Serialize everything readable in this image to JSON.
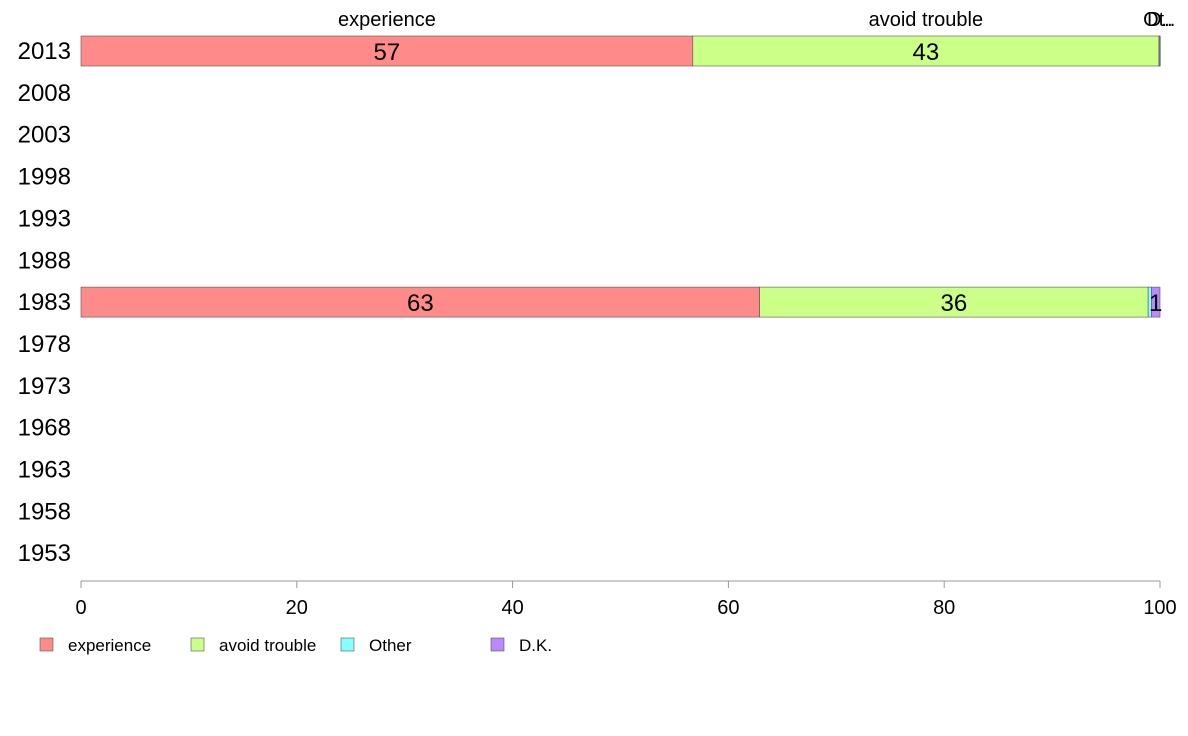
{
  "chart_data": {
    "type": "bar",
    "orientation": "horizontal",
    "stacked": true,
    "categories": [
      "2013",
      "2008",
      "2003",
      "1998",
      "1993",
      "1988",
      "1983",
      "1978",
      "1973",
      "1968",
      "1963",
      "1958",
      "1953"
    ],
    "series": [
      {
        "name": "experience",
        "color": "#FF8A8A",
        "values": [
          56.7,
          null,
          null,
          null,
          null,
          null,
          62.9,
          null,
          null,
          null,
          null,
          null,
          null
        ]
      },
      {
        "name": "avoid trouble",
        "color": "#CCFF88",
        "values": [
          43.2,
          null,
          null,
          null,
          null,
          null,
          36.0,
          null,
          null,
          null,
          null,
          null,
          null
        ]
      },
      {
        "name": "Other",
        "color": "#88FFFF",
        "values": [
          0.05,
          null,
          null,
          null,
          null,
          null,
          0.3,
          null,
          null,
          null,
          null,
          null,
          null
        ]
      },
      {
        "name": "D.K.",
        "color": "#BB88FF",
        "values": [
          0.05,
          null,
          null,
          null,
          null,
          null,
          0.8,
          null,
          null,
          null,
          null,
          null,
          null
        ]
      }
    ],
    "data_labels": {
      "2013": [
        "57",
        "43",
        "",
        ""
      ],
      "1983": [
        "63",
        "36",
        "",
        "1"
      ]
    },
    "top_labels": [
      "experience",
      "avoid trouble",
      "Ot..",
      "D.."
    ],
    "xticks": [
      "0",
      "20",
      "40",
      "60",
      "80",
      "100"
    ],
    "xlim": [
      0,
      100
    ],
    "grid": false,
    "legend_position": "bottom-left"
  }
}
